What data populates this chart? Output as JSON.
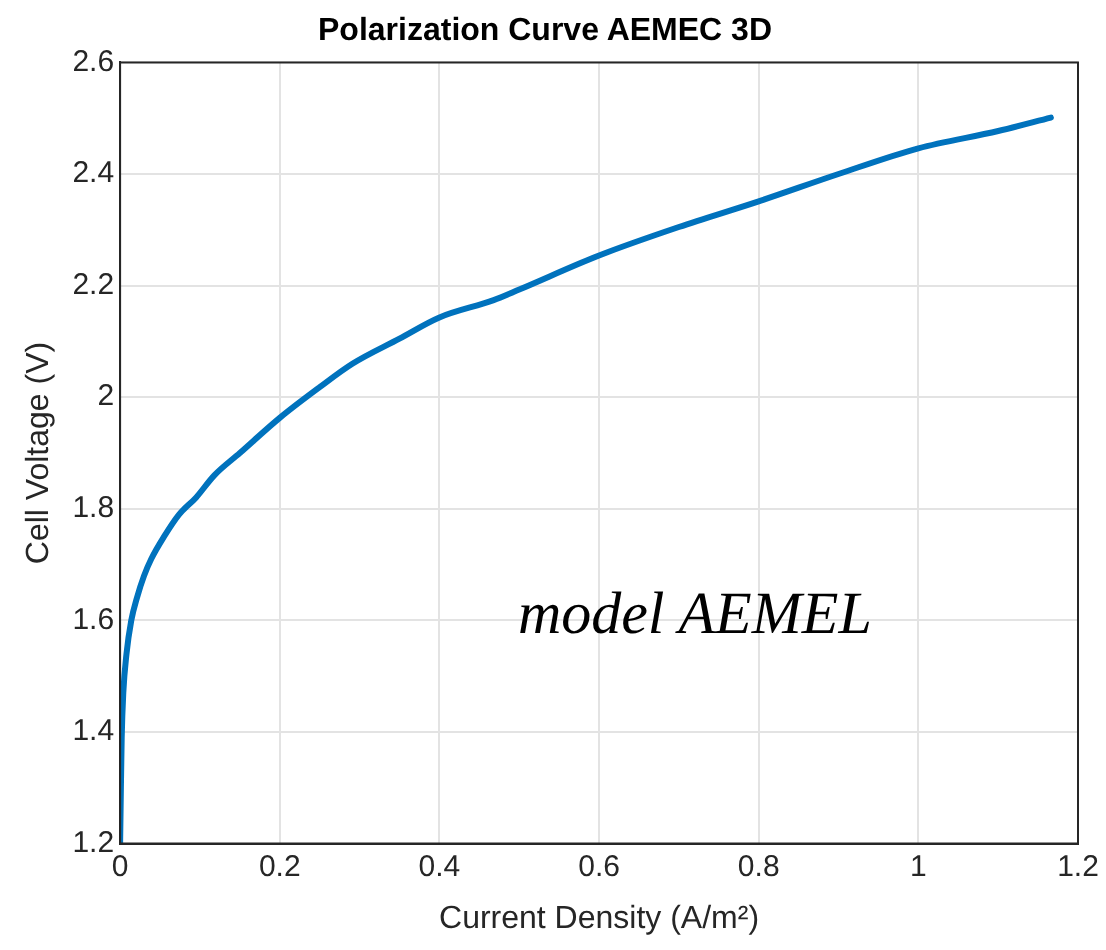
{
  "chart_data": {
    "type": "line",
    "title": "Polarization Curve AEMEC 3D",
    "xlabel": "Current Density (A/m²)",
    "ylabel": "Cell Voltage (V)",
    "annotations": [
      "model AEMEL"
    ],
    "x": [
      0,
      0.001,
      0.002,
      0.004,
      0.008,
      0.014,
      0.021,
      0.03,
      0.039,
      0.055,
      0.074,
      0.095,
      0.118,
      0.15,
      0.2,
      0.25,
      0.291,
      0.35,
      0.4,
      0.468,
      0.5,
      0.6,
      0.7,
      0.8,
      0.9,
      1.0,
      1.1,
      1.166
    ],
    "series": [
      {
        "color": "#0072bd",
        "values": [
          1.2,
          1.3,
          1.39,
          1.47,
          1.54,
          1.6,
          1.64,
          1.68,
          1.71,
          1.75,
          1.79,
          1.82,
          1.86,
          1.9,
          1.963,
          2.018,
          2.06,
          2.105,
          2.143,
          2.174,
          2.193,
          2.254,
          2.305,
          2.351,
          2.4,
          2.446,
          2.477,
          2.501
        ]
      }
    ],
    "xlim": [
      0,
      1.2
    ],
    "xticks": [
      0,
      0.2,
      0.4,
      0.6,
      0.8,
      1,
      1.2
    ],
    "ylim": [
      1.2,
      2.6
    ],
    "yticks": [
      1.2,
      1.4,
      1.6,
      1.8,
      2,
      2.2,
      2.4,
      2.6
    ],
    "grid": true,
    "legend": false,
    "marker": "none",
    "line_style": "solid"
  }
}
